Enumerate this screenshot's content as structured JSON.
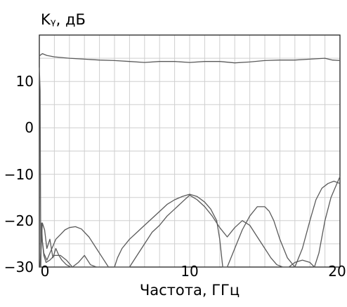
{
  "chart_data": {
    "type": "line",
    "title": "",
    "ylabel": "Kᵧ, дБ",
    "xlabel": "Частота, ГГц",
    "xlim": [
      0,
      20
    ],
    "ylim": [
      -30,
      20
    ],
    "x_ticks": [
      "0",
      "10",
      "20"
    ],
    "y_ticks": [
      "10",
      "0",
      "−10",
      "−20",
      "−30"
    ],
    "grid": true,
    "grid_x_step": 1,
    "grid_y_step": 5,
    "line_color": "#5a5a5a",
    "grid_color": "#cfcfcf",
    "series": [
      {
        "x": [
          0,
          0.2,
          0.5,
          1,
          2,
          3,
          4,
          5,
          6,
          7,
          8,
          9,
          10,
          11,
          12,
          13,
          14,
          15,
          16,
          17,
          18,
          19,
          19.5,
          20
        ],
        "y": [
          15.5,
          16.0,
          15.6,
          15.3,
          15.0,
          14.8,
          14.6,
          14.5,
          14.3,
          14.1,
          14.3,
          14.3,
          14.1,
          14.3,
          14.3,
          14.0,
          14.2,
          14.5,
          14.6,
          14.6,
          14.8,
          15.0,
          14.6,
          14.5
        ]
      },
      {
        "x": [
          0.05,
          0.15,
          0.3,
          0.5,
          0.7,
          0.9,
          1.1,
          1.4,
          1.7,
          2.0,
          2.4,
          2.8,
          3.3,
          3.8,
          4.2,
          4.6,
          5.0,
          5.2,
          5.5,
          6.0,
          6.5,
          7.0,
          7.5,
          8.0,
          8.5,
          9.0,
          9.5,
          10.0,
          10.5,
          11.0,
          11.4,
          11.8,
          12.0,
          12.2,
          12.5,
          13.0,
          13.5,
          14.0,
          14.5,
          15.0,
          15.3,
          15.6,
          16.0,
          16.5,
          17.0,
          17.5,
          18.0,
          18.4,
          18.8,
          19.2,
          19.6,
          20.0
        ],
        "y": [
          -30,
          -23,
          -27,
          -28.5,
          -27,
          -25.5,
          -24,
          -23,
          -22,
          -21.5,
          -21.3,
          -21.8,
          -23.5,
          -26,
          -28,
          -30,
          -30,
          -28,
          -26,
          -24,
          -22.5,
          -21,
          -19.5,
          -18,
          -16.5,
          -15.5,
          -14.8,
          -14.3,
          -14.8,
          -16,
          -17.5,
          -20,
          -24,
          -30,
          -30,
          -26,
          -22,
          -19,
          -17,
          -17,
          -18,
          -20,
          -24,
          -28,
          -30,
          -26,
          -20,
          -15.5,
          -13,
          -12,
          -11.5,
          -12
        ]
      },
      {
        "x": [
          0.05,
          0.2,
          0.35,
          0.5,
          0.7,
          0.9,
          1.1,
          1.3,
          1.5,
          1.8,
          2.1,
          2.5,
          3.0,
          3.5,
          3.8,
          4.0,
          5.0,
          5.6,
          6.0,
          6.5,
          7.0,
          7.5,
          8.0,
          8.5,
          9.0,
          9.5,
          10.0,
          10.5,
          11.0,
          11.5,
          12.0,
          12.5,
          13.0,
          13.5,
          14.0,
          14.5,
          15.0,
          15.4,
          15.8,
          16.2,
          16.6,
          17.0,
          17.5,
          18.0,
          18.3,
          18.6,
          19.0,
          19.4,
          19.8,
          20.0
        ],
        "y": [
          -30,
          -20.5,
          -22,
          -26,
          -24,
          -28,
          -26,
          -27.5,
          -28.5,
          -29.5,
          -30,
          -30,
          -30,
          -30,
          -30,
          -30,
          -30,
          -30,
          -30,
          -27.5,
          -25,
          -22.5,
          -21,
          -19,
          -17.5,
          -16,
          -14.5,
          -15.5,
          -17,
          -19,
          -21.5,
          -23.5,
          -21.5,
          -20,
          -21,
          -23.5,
          -26,
          -28,
          -29.5,
          -30,
          -30,
          -29,
          -28.5,
          -29,
          -30,
          -27,
          -20,
          -15,
          -12,
          -10.5
        ]
      },
      {
        "x": [
          0,
          0.05,
          0.1,
          0.15,
          0.2,
          0.3,
          0.45,
          0.7,
          1.0,
          1.4,
          1.8,
          2.2,
          2.6,
          3.0,
          3.4,
          3.8
        ],
        "y": [
          13,
          8,
          -30,
          -20.5,
          -24.5,
          -27.5,
          -29,
          -28.5,
          -27.5,
          -27.5,
          -28.5,
          -30,
          -29,
          -27.5,
          -29.5,
          -30
        ]
      }
    ]
  }
}
